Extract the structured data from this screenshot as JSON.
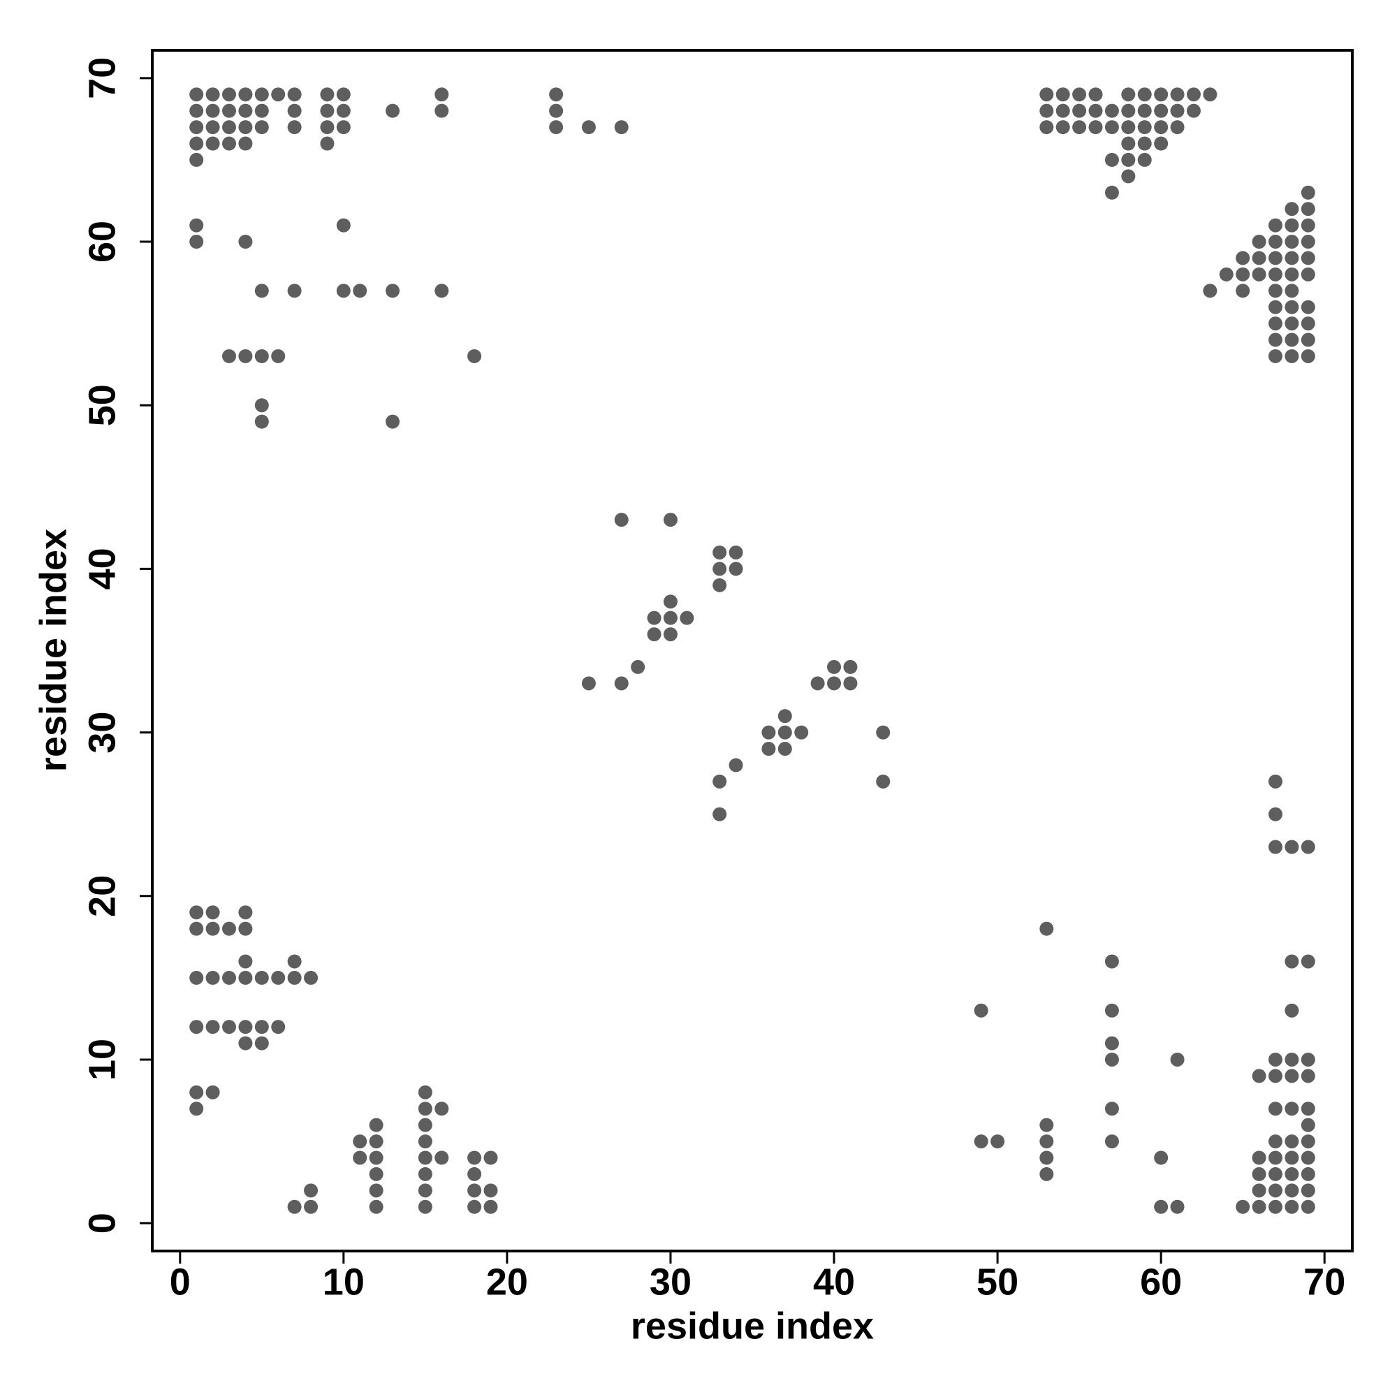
{
  "chart_data": {
    "type": "scatter",
    "x_label": "residue index",
    "y_label": "residue index",
    "xlim": [
      -1.7,
      71.7
    ],
    "ylim": [
      -1.7,
      71.7
    ],
    "xticks": [
      0,
      10,
      20,
      30,
      40,
      50,
      60,
      70
    ],
    "yticks": [
      0,
      10,
      20,
      30,
      40,
      50,
      60,
      70
    ],
    "color": "#5e5e5e",
    "x": [
      1,
      2,
      3,
      4,
      5,
      6,
      7,
      9,
      10,
      16,
      23,
      53,
      54,
      55,
      56,
      58,
      59,
      60,
      61,
      62,
      63,
      1,
      2,
      3,
      4,
      5,
      7,
      9,
      10,
      13,
      16,
      23,
      53,
      54,
      55,
      56,
      57,
      58,
      59,
      60,
      61,
      62,
      1,
      2,
      3,
      4,
      5,
      7,
      9,
      10,
      23,
      25,
      27,
      53,
      54,
      55,
      56,
      57,
      58,
      59,
      60,
      61,
      1,
      2,
      3,
      4,
      9,
      58,
      59,
      60,
      1,
      57,
      58,
      59,
      58,
      57,
      69,
      68,
      69,
      1,
      10,
      67,
      68,
      69,
      1,
      4,
      66,
      67,
      68,
      69,
      65,
      66,
      67,
      68,
      69,
      64,
      65,
      66,
      67,
      68,
      69,
      5,
      7,
      10,
      11,
      13,
      16,
      63,
      65,
      67,
      68,
      67,
      68,
      69,
      67,
      68,
      69,
      67,
      68,
      69,
      3,
      4,
      5,
      6,
      18,
      67,
      68,
      69,
      5,
      5,
      13,
      27,
      30,
      33,
      34,
      33,
      34,
      33,
      30,
      29,
      30,
      31,
      29,
      30,
      28,
      40,
      41,
      25,
      27,
      39,
      40,
      41,
      37,
      36,
      37,
      38,
      43,
      36,
      37,
      34,
      33,
      43,
      67,
      33,
      67,
      67,
      68,
      69,
      1,
      2,
      4,
      1,
      2,
      3,
      4,
      53,
      4,
      7,
      57,
      68,
      69,
      1,
      2,
      3,
      4,
      5,
      6,
      7,
      8,
      49,
      57,
      68,
      1,
      2,
      3,
      4,
      5,
      6,
      4,
      5,
      57,
      57,
      61,
      67,
      68,
      69,
      66,
      67,
      68,
      69,
      1,
      2,
      15,
      1,
      15,
      16,
      57,
      67,
      68,
      69,
      12,
      15,
      53,
      69,
      11,
      12,
      15,
      49,
      50,
      53,
      57,
      67,
      68,
      69,
      11,
      12,
      15,
      16,
      18,
      19,
      53,
      60,
      66,
      67,
      68,
      69,
      12,
      15,
      18,
      53,
      66,
      67,
      68,
      69,
      8,
      12,
      15,
      18,
      19,
      66,
      67,
      68,
      69,
      7,
      8,
      12,
      15,
      18,
      19,
      60,
      61,
      65,
      66,
      67,
      68,
      69
    ],
    "y": [
      69,
      69,
      69,
      69,
      69,
      69,
      69,
      69,
      69,
      69,
      69,
      69,
      69,
      69,
      69,
      69,
      69,
      69,
      69,
      69,
      69,
      68,
      68,
      68,
      68,
      68,
      68,
      68,
      68,
      68,
      68,
      68,
      68,
      68,
      68,
      68,
      68,
      68,
      68,
      68,
      68,
      68,
      67,
      67,
      67,
      67,
      67,
      67,
      67,
      67,
      67,
      67,
      67,
      67,
      67,
      67,
      67,
      67,
      67,
      67,
      67,
      67,
      66,
      66,
      66,
      66,
      66,
      66,
      66,
      66,
      65,
      65,
      65,
      65,
      64,
      63,
      63,
      62,
      62,
      61,
      61,
      61,
      61,
      61,
      60,
      60,
      60,
      60,
      60,
      60,
      59,
      59,
      59,
      59,
      59,
      58,
      58,
      58,
      58,
      58,
      58,
      57,
      57,
      57,
      57,
      57,
      57,
      57,
      57,
      57,
      57,
      56,
      56,
      56,
      55,
      55,
      55,
      54,
      54,
      54,
      53,
      53,
      53,
      53,
      53,
      53,
      53,
      53,
      50,
      49,
      49,
      43,
      43,
      41,
      41,
      40,
      40,
      39,
      38,
      37,
      37,
      37,
      36,
      36,
      34,
      34,
      34,
      33,
      33,
      33,
      33,
      33,
      31,
      30,
      30,
      30,
      30,
      29,
      29,
      28,
      27,
      27,
      27,
      25,
      25,
      23,
      23,
      23,
      19,
      19,
      19,
      18,
      18,
      18,
      18,
      18,
      16,
      16,
      16,
      16,
      16,
      15,
      15,
      15,
      15,
      15,
      15,
      15,
      15,
      13,
      13,
      13,
      12,
      12,
      12,
      12,
      12,
      12,
      11,
      11,
      11,
      10,
      10,
      10,
      10,
      10,
      9,
      9,
      9,
      9,
      8,
      8,
      8,
      7,
      7,
      7,
      7,
      7,
      7,
      7,
      6,
      6,
      6,
      6,
      5,
      5,
      5,
      5,
      5,
      5,
      5,
      5,
      5,
      5,
      4,
      4,
      4,
      4,
      4,
      4,
      4,
      4,
      4,
      4,
      4,
      4,
      3,
      3,
      3,
      3,
      3,
      3,
      3,
      3,
      2,
      2,
      2,
      2,
      2,
      2,
      2,
      2,
      2,
      1,
      1,
      1,
      1,
      1,
      1,
      1,
      1,
      1,
      1,
      1,
      1,
      1
    ]
  }
}
